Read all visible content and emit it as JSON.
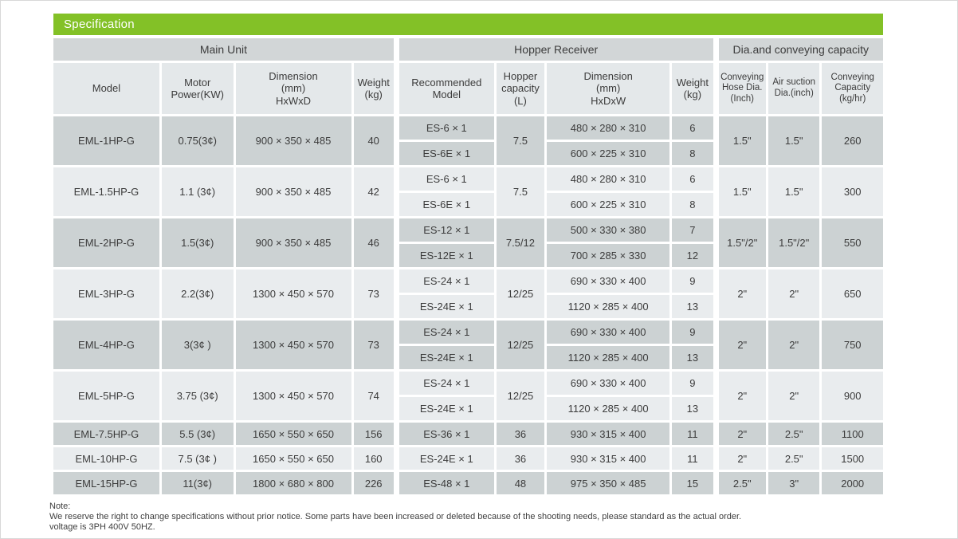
{
  "title": "Specification",
  "colors": {
    "accent_green": "#83C127",
    "group_band_gray": "#D2D6D7",
    "column_header_gray": "#E4E8EA",
    "row_dark_gray": "#CCD2D3",
    "row_light_gray": "#E9ECEE"
  },
  "groups": {
    "main_unit": "Main Unit",
    "hopper_receiver": "Hopper Receiver",
    "dia_capacity": "Dia.and conveying capacity"
  },
  "columns": {
    "model": "Model",
    "motor_power": "Motor\nPower(KW)",
    "main_dimension": "Dimension\n(mm)\nHxWxD",
    "main_weight": "Weight\n(kg)",
    "recommended_model": "Recommended\nModel",
    "hopper_capacity": "Hopper\ncapacity\n(L)",
    "hopper_dimension": "Dimension\n(mm)\nHxDxW",
    "hopper_weight": "Weight\n(kg)",
    "hose_dia": "Conveying\nHose Dia.\n(Inch)",
    "suction_dia": "Air suction\nDia.(inch)",
    "conveying_capacity": "Conveying\nCapacity\n(kg/hr)"
  },
  "rows": [
    {
      "model": "EML-1HP-G",
      "power": "0.75(3¢)",
      "dimension": "900 × 350 × 485",
      "weight": "40",
      "capacity": "7.5",
      "hose": "1.5\"",
      "suction": "1.5\"",
      "conveying": "260",
      "shade": "dark",
      "hoppers": [
        {
          "model": "ES-6 × 1",
          "dimension": "480 × 280 × 310",
          "weight": "6"
        },
        {
          "model": "ES-6E × 1",
          "dimension": "600 × 225 × 310",
          "weight": "8"
        }
      ]
    },
    {
      "model": "EML-1.5HP-G",
      "power": "1.1 (3¢)",
      "dimension": "900 × 350 × 485",
      "weight": "42",
      "capacity": "7.5",
      "hose": "1.5\"",
      "suction": "1.5\"",
      "conveying": "300",
      "shade": "light",
      "hoppers": [
        {
          "model": "ES-6 × 1",
          "dimension": "480 × 280 × 310",
          "weight": "6"
        },
        {
          "model": "ES-6E × 1",
          "dimension": "600 × 225 × 310",
          "weight": "8"
        }
      ]
    },
    {
      "model": "EML-2HP-G",
      "power": "1.5(3¢)",
      "dimension": "900 × 350 × 485",
      "weight": "46",
      "capacity": "7.5/12",
      "hose": "1.5\"/2\"",
      "suction": "1.5\"/2\"",
      "conveying": "550",
      "shade": "dark",
      "hoppers": [
        {
          "model": "ES-12 × 1",
          "dimension": "500 × 330 × 380",
          "weight": "7"
        },
        {
          "model": "ES-12E × 1",
          "dimension": "700 × 285 × 330",
          "weight": "12"
        }
      ]
    },
    {
      "model": "EML-3HP-G",
      "power": "2.2(3¢)",
      "dimension": "1300 × 450 × 570",
      "weight": "73",
      "capacity": "12/25",
      "hose": "2\"",
      "suction": "2\"",
      "conveying": "650",
      "shade": "light",
      "hoppers": [
        {
          "model": "ES-24 × 1",
          "dimension": "690 × 330 × 400",
          "weight": "9"
        },
        {
          "model": "ES-24E × 1",
          "dimension": "1120 × 285 × 400",
          "weight": "13"
        }
      ]
    },
    {
      "model": "EML-4HP-G",
      "power": "3(3¢ )",
      "dimension": "1300 × 450 × 570",
      "weight": "73",
      "capacity": "12/25",
      "hose": "2\"",
      "suction": "2\"",
      "conveying": "750",
      "shade": "dark",
      "hoppers": [
        {
          "model": "ES-24 × 1",
          "dimension": "690 × 330 × 400",
          "weight": "9"
        },
        {
          "model": "ES-24E × 1",
          "dimension": "1120 × 285 × 400",
          "weight": "13"
        }
      ]
    },
    {
      "model": "EML-5HP-G",
      "power": "3.75 (3¢)",
      "dimension": "1300 × 450 × 570",
      "weight": "74",
      "capacity": "12/25",
      "hose": "2\"",
      "suction": "2\"",
      "conveying": "900",
      "shade": "light",
      "hoppers": [
        {
          "model": "ES-24 × 1",
          "dimension": "690 × 330 × 400",
          "weight": "9"
        },
        {
          "model": "ES-24E × 1",
          "dimension": "1120 × 285 × 400",
          "weight": "13"
        }
      ]
    },
    {
      "model": "EML-7.5HP-G",
      "power": "5.5 (3¢)",
      "dimension": "1650 × 550 × 650",
      "weight": "156",
      "capacity": "36",
      "hose": "2\"",
      "suction": "2.5\"",
      "conveying": "1100",
      "shade": "dark",
      "hoppers": [
        {
          "model": "ES-36 × 1",
          "dimension": "930 × 315 × 400",
          "weight": "11"
        }
      ]
    },
    {
      "model": "EML-10HP-G",
      "power": "7.5 (3¢ )",
      "dimension": "1650 × 550 × 650",
      "weight": "160",
      "capacity": "36",
      "hose": "2\"",
      "suction": "2.5\"",
      "conveying": "1500",
      "shade": "light",
      "hoppers": [
        {
          "model": "ES-24E × 1",
          "dimension": "930 × 315 × 400",
          "weight": "11"
        }
      ]
    },
    {
      "model": "EML-15HP-G",
      "power": "11(3¢)",
      "dimension": "1800 × 680 × 800",
      "weight": "226",
      "capacity": "48",
      "hose": "2.5\"",
      "suction": "3\"",
      "conveying": "2000",
      "shade": "dark",
      "hoppers": [
        {
          "model": "ES-48 × 1",
          "dimension": "975 × 350 × 485",
          "weight": "15"
        }
      ]
    }
  ],
  "note": {
    "label": "Note:",
    "line1": "We reserve the right to change specifications without prior notice. Some parts have been increased or deleted because of the shooting needs, please standard as the actual order.",
    "line2": "voltage is 3PH 400V 50HZ."
  }
}
